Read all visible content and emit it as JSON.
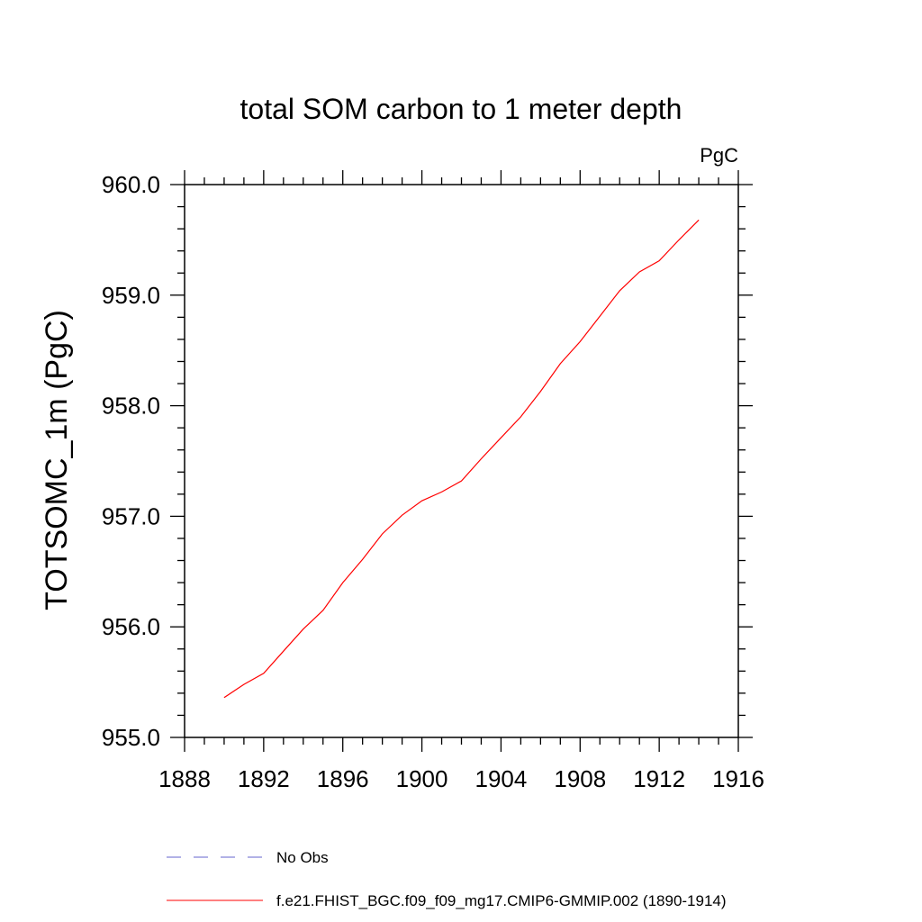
{
  "chart_data": {
    "type": "line",
    "title": "total SOM carbon to 1 meter depth",
    "units_label": "PgC",
    "xlabel": "",
    "ylabel": "TOTSOMC_1m  (PgC)",
    "xlim": [
      1888,
      1916
    ],
    "ylim": [
      955.0,
      960.0
    ],
    "x_ticks": [
      1888,
      1892,
      1896,
      1900,
      1904,
      1908,
      1912,
      1916
    ],
    "x_tick_labels": [
      "1888",
      "1892",
      "1896",
      "1900",
      "1904",
      "1908",
      "1912",
      "1916"
    ],
    "y_ticks": [
      955.0,
      956.0,
      957.0,
      958.0,
      959.0,
      960.0
    ],
    "y_tick_labels": [
      "955.0",
      "956.0",
      "957.0",
      "958.0",
      "959.0",
      "960.0"
    ],
    "grid": false,
    "legend_position": "bottom",
    "series": [
      {
        "name": "f.e21.FHIST_BGC.f09_f09_mg17.CMIP6-GMMIP.002 (1890-1914)",
        "color": "#ff0000",
        "style": "solid",
        "x": [
          1890,
          1891,
          1892,
          1893,
          1894,
          1895,
          1896,
          1897,
          1898,
          1899,
          1900,
          1901,
          1902,
          1903,
          1904,
          1905,
          1906,
          1907,
          1908,
          1909,
          1910,
          1911,
          1912,
          1913,
          1914
        ],
        "values": [
          955.36,
          955.48,
          955.58,
          955.78,
          955.98,
          956.15,
          956.4,
          956.61,
          956.84,
          957.01,
          957.14,
          957.22,
          957.32,
          957.52,
          957.71,
          957.9,
          958.13,
          958.38,
          958.58,
          958.81,
          959.04,
          959.21,
          959.31,
          959.5,
          959.68
        ]
      }
    ],
    "legend": [
      {
        "label": "No Obs",
        "color": "#6666cc",
        "style": "dashed"
      },
      {
        "label": "f.e21.FHIST_BGC.f09_f09_mg17.CMIP6-GMMIP.002 (1890-1914)",
        "color": "#ff0000",
        "style": "solid"
      }
    ]
  }
}
